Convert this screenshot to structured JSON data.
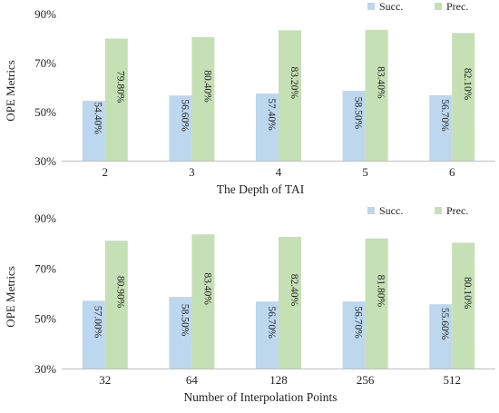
{
  "chart_data": [
    {
      "type": "bar",
      "categories": [
        "2",
        "3",
        "4",
        "5",
        "6"
      ],
      "series": [
        {
          "name": "Succ.",
          "values": [
            54.4,
            56.6,
            57.4,
            58.5,
            56.7
          ],
          "labels": [
            "54.40%",
            "56.60%",
            "57.40%",
            "58.50%",
            "56.70%"
          ],
          "color": "#bdd7ee"
        },
        {
          "name": "Prec.",
          "values": [
            79.8,
            80.4,
            83.2,
            83.4,
            82.1
          ],
          "labels": [
            "79.80%",
            "80.40%",
            "83.20%",
            "83.40%",
            "82.10%"
          ],
          "color": "#c5e0b4"
        }
      ],
      "title": "",
      "xlabel": "The Depth of TAI",
      "ylabel": "OPE Metrics",
      "ylim": [
        30,
        90
      ],
      "yticks": [
        "30%",
        "50%",
        "70%",
        "90%"
      ],
      "ytick_values": [
        30,
        50,
        70,
        90
      ],
      "grid": false,
      "legend_position": "top-right"
    },
    {
      "type": "bar",
      "categories": [
        "32",
        "64",
        "128",
        "256",
        "512"
      ],
      "series": [
        {
          "name": "Succ.",
          "values": [
            57.0,
            58.5,
            56.7,
            56.7,
            55.6
          ],
          "labels": [
            "57.00%",
            "58.50%",
            "56.70%",
            "56.70%",
            "55.60%"
          ],
          "color": "#bdd7ee"
        },
        {
          "name": "Prec.",
          "values": [
            80.9,
            83.4,
            82.4,
            81.8,
            80.1
          ],
          "labels": [
            "80.90%",
            "83.40%",
            "82.40%",
            "81.80%",
            "80.10%"
          ],
          "color": "#c5e0b4"
        }
      ],
      "title": "",
      "xlabel": "Number of Interpolation Points",
      "ylabel": "OPE Metrics",
      "ylim": [
        30,
        90
      ],
      "yticks": [
        "30%",
        "50%",
        "70%",
        "90%"
      ],
      "ytick_values": [
        30,
        50,
        70,
        90
      ],
      "grid": false,
      "legend_position": "top-right"
    }
  ]
}
